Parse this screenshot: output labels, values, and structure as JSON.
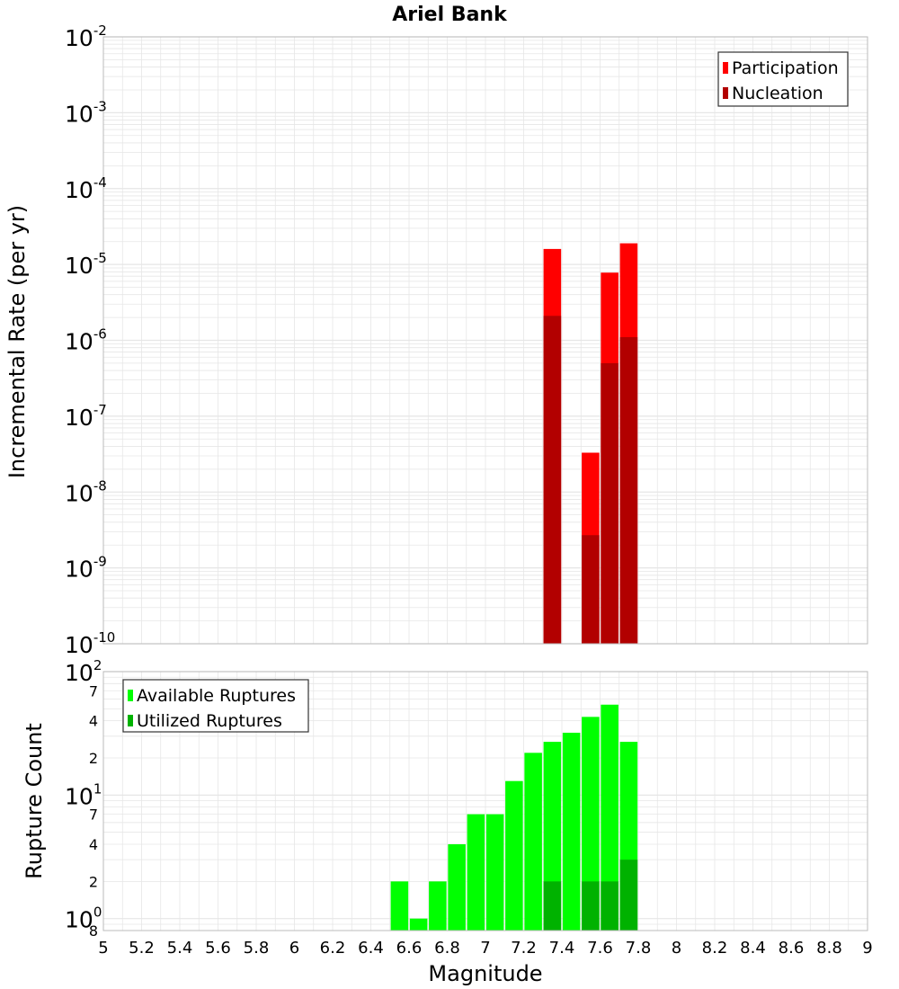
{
  "title": "Ariel Bank",
  "xlabel": "Magnitude",
  "x_tick_labels": [
    "5",
    "5.2",
    "5.4",
    "5.6",
    "5.8",
    "6",
    "6.2",
    "6.4",
    "6.6",
    "6.8",
    "7",
    "7.2",
    "7.4",
    "7.6",
    "7.8",
    "8",
    "8.2",
    "8.4",
    "8.6",
    "8.8",
    "9"
  ],
  "colors": {
    "participation": "#ff0000",
    "nucleation": "#b20000",
    "available": "#00ff00",
    "utilized": "#00b200",
    "grid": "#e6e6e6",
    "frame": "#bbbbbb"
  },
  "chart_data": [
    {
      "type": "bar",
      "panel": "top",
      "ylabel": "Incremental Rate (per yr)",
      "yscale": "log",
      "xlim": [
        5,
        9
      ],
      "ylim": [
        1e-10,
        0.01
      ],
      "y_tick_labels": [
        {
          "base": "10",
          "exp": "-2"
        },
        {
          "base": "10",
          "exp": "-3"
        },
        {
          "base": "10",
          "exp": "-4"
        },
        {
          "base": "10",
          "exp": "-5"
        },
        {
          "base": "10",
          "exp": "-6"
        },
        {
          "base": "10",
          "exp": "-7"
        },
        {
          "base": "10",
          "exp": "-8"
        },
        {
          "base": "10",
          "exp": "-9"
        },
        {
          "base": "10",
          "exp": "-10"
        }
      ],
      "legend": {
        "placement": "top-right"
      },
      "x": [
        7.35,
        7.55,
        7.65,
        7.75
      ],
      "series": [
        {
          "name": "Participation",
          "values": [
            1.6e-05,
            3.3e-08,
            7.8e-06,
            1.9e-05
          ]
        },
        {
          "name": "Nucleation",
          "values": [
            2.1e-06,
            2.7e-09,
            5e-07,
            1.1e-06
          ]
        }
      ]
    },
    {
      "type": "bar",
      "panel": "bottom",
      "ylabel": "Rupture Count",
      "yscale": "log",
      "xlim": [
        5,
        9
      ],
      "ylim": [
        0.8,
        100
      ],
      "y_tick_labels": [
        {
          "base": "10",
          "exp": "2"
        },
        {
          "text": "7"
        },
        {
          "text": "4"
        },
        {
          "text": "2"
        },
        {
          "base": "10",
          "exp": "1"
        },
        {
          "text": "7"
        },
        {
          "text": "4"
        },
        {
          "text": "2"
        },
        {
          "base": "10",
          "exp": "0"
        },
        {
          "text": "8"
        }
      ],
      "legend": {
        "placement": "top-left"
      },
      "x": [
        6.55,
        6.65,
        6.75,
        6.85,
        6.95,
        7.05,
        7.15,
        7.25,
        7.35,
        7.45,
        7.55,
        7.65,
        7.75
      ],
      "series": [
        {
          "name": "Available Ruptures",
          "values": [
            2,
            1,
            2,
            4,
            7,
            7,
            13,
            22,
            27,
            32,
            43,
            54,
            27
          ]
        },
        {
          "name": "Utilized Ruptures",
          "values": [
            0,
            0,
            0,
            0,
            0,
            0,
            0,
            0,
            2,
            0,
            2,
            2,
            3
          ]
        }
      ]
    }
  ]
}
